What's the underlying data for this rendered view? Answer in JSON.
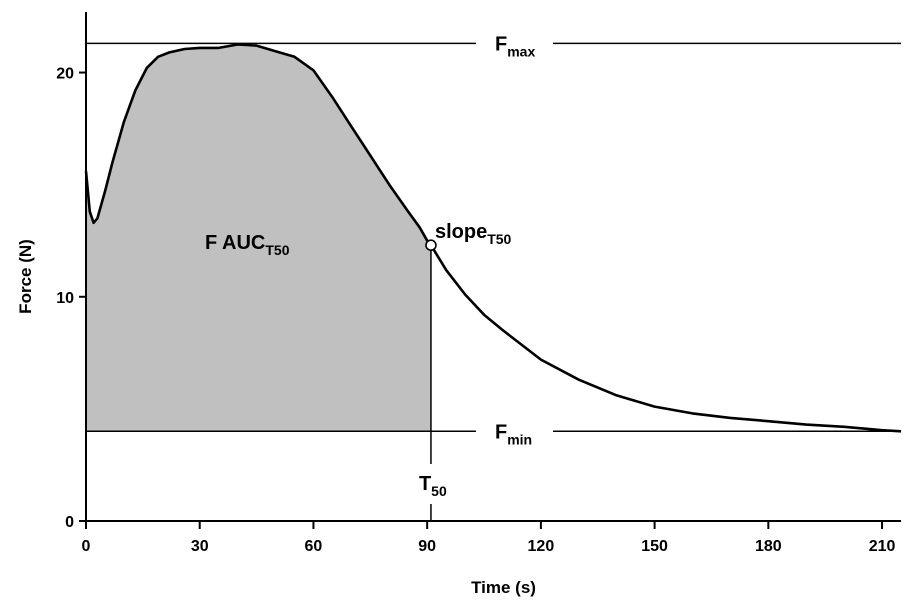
{
  "chart_data": {
    "type": "line",
    "title": "",
    "xlabel": "Time (s)",
    "ylabel": "Force (N)",
    "xlim": [
      0,
      215
    ],
    "ylim": [
      0,
      22.7
    ],
    "x_ticks": [
      "0",
      "30",
      "60",
      "90",
      "120",
      "150",
      "180",
      "210"
    ],
    "y_ticks": [
      "0",
      "10",
      "20"
    ],
    "grid": false,
    "series": [
      {
        "x": [
          0,
          1,
          2,
          3,
          4,
          5,
          7,
          10,
          13,
          16,
          19,
          22,
          26,
          30,
          35,
          40,
          45,
          50,
          55,
          60,
          65,
          70,
          75,
          80,
          85,
          88,
          90,
          91,
          95,
          100,
          105,
          110,
          120,
          130,
          140,
          150,
          160,
          170,
          180,
          190,
          200,
          210,
          215
        ],
        "y": [
          15.6,
          13.8,
          13.3,
          13.5,
          14.1,
          14.7,
          16.0,
          17.8,
          19.2,
          20.2,
          20.7,
          20.9,
          21.05,
          21.1,
          21.1,
          21.25,
          21.2,
          20.95,
          20.7,
          20.1,
          18.9,
          17.6,
          16.3,
          15.0,
          13.8,
          13.1,
          12.5,
          12.3,
          11.2,
          10.1,
          9.2,
          8.5,
          7.2,
          6.3,
          5.6,
          5.1,
          4.8,
          4.6,
          4.45,
          4.3,
          4.2,
          4.05,
          4.0
        ]
      }
    ],
    "shaded_area": {
      "label_main": "F AUC",
      "label_sub": "T50",
      "x_from": 0,
      "x_to": 91,
      "baseline": 4.0
    },
    "reference_lines": [
      {
        "label_main": "F",
        "label_sub": "max",
        "y": 21.3
      },
      {
        "label_main": "F",
        "label_sub": "min",
        "y": 4.0
      }
    ],
    "vertical_marker": {
      "label_main": "T",
      "label_sub": "50",
      "x": 91
    },
    "point_annotation": {
      "label_main": "slope",
      "label_sub": "T50",
      "x": 91,
      "y": 12.3
    }
  }
}
